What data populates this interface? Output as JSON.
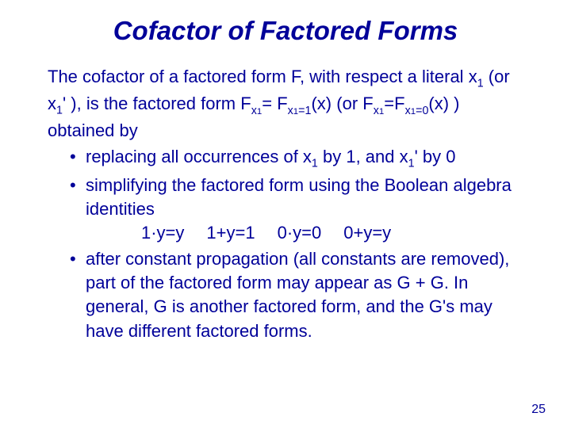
{
  "colors": {
    "text": "#000099",
    "background": "#ffffff"
  },
  "title": "Cofactor of Factored Forms",
  "para_lead": "The ",
  "para_cofactor": "cofactor of a factored form ",
  "para_F": "F",
  "para_wrt": ", with respect a literal ",
  "para_x1": "x",
  "para_or": " (or ",
  "para_x1p": "x",
  "para_prime": "'",
  "para_close1": " ), is the factored form ",
  "para_Fx1": "F",
  "para_eq1": "= ",
  "para_Fx1_1": "F",
  "para_fx_arg": "(x)",
  "para_or2": " (or ",
  "para_Fx1p": "F",
  "para_eq2": "=",
  "para_Fx1_0": "F",
  "para_end": " ) obtained by",
  "b1_a": "replacing all occurrences of x",
  "b1_b": " by 1, and x",
  "b1_c": "' by 0",
  "b2": "simplifying the factored form using the Boolean algebra identities",
  "ident1": "1·y=y",
  "ident2": "1+y=1",
  "ident3": "0·y=0",
  "ident4": "0+y=y",
  "b3_a": "after constant propagation ",
  "b3_b": "(all constants are removed)",
  "b3_c": ", part of the factored form may appear as G + G.  In general, G is another factored form, and the G's may have different factored forms.",
  "pagenum": "25",
  "fontsize_title": 33,
  "fontsize_body": 22,
  "fontsize_pagenum": 16
}
